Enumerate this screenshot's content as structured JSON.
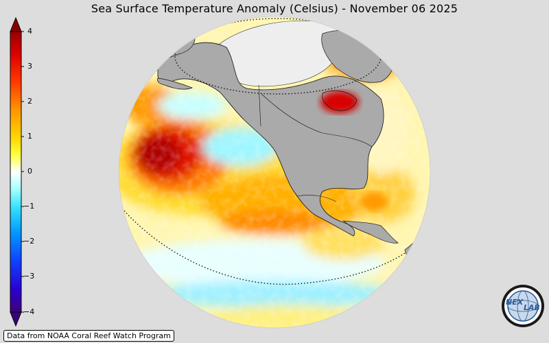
{
  "title": "Sea Surface Temperature Anomaly (Celsius) - November 06 2025",
  "colorbar": {
    "ticks": [
      "4",
      "3",
      "2",
      "1",
      "0",
      "−1",
      "−2",
      "−3",
      "−4"
    ],
    "min": -4,
    "max": 4,
    "colors": [
      "#3a007a",
      "#1a1aff",
      "#0080ff",
      "#00e5ff",
      "#ffffff",
      "#ffff00",
      "#ffa000",
      "#ff2a00",
      "#a00000"
    ]
  },
  "map": {
    "projection": "orthographic",
    "land_color": "#aaaaaa",
    "ocean_background": "#ffffff"
  },
  "credit": "Data from NOAA Coral Reef Watch Program",
  "logo": {
    "text_left": "NEX",
    "text_right": "LAB",
    "icon": "nexlab-globe-logo"
  }
}
